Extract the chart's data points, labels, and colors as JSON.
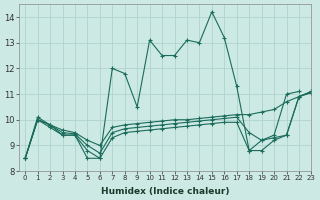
{
  "xlabel": "Humidex (Indice chaleur)",
  "xlim": [
    -0.5,
    23
  ],
  "ylim": [
    8,
    14.5
  ],
  "yticks": [
    8,
    9,
    10,
    11,
    12,
    13,
    14
  ],
  "xticks": [
    0,
    1,
    2,
    3,
    4,
    5,
    6,
    7,
    8,
    9,
    10,
    11,
    12,
    13,
    14,
    15,
    16,
    17,
    18,
    19,
    20,
    21,
    22,
    23
  ],
  "background_color": "#cce9e4",
  "grid_color": "#aacfc9",
  "line_color": "#1a6b5a",
  "main_x": [
    0,
    1,
    2,
    3,
    4,
    5,
    6,
    7,
    8,
    9,
    10,
    11,
    12,
    13,
    14,
    15,
    16,
    17,
    18,
    19,
    20,
    21,
    22
  ],
  "main_y": [
    8.5,
    10.1,
    9.8,
    9.4,
    9.4,
    8.5,
    8.5,
    12.0,
    11.8,
    10.5,
    13.1,
    12.5,
    12.5,
    13.1,
    13.0,
    14.2,
    13.2,
    11.3,
    8.8,
    9.2,
    9.4,
    11.0,
    11.1
  ],
  "line2_x": [
    0,
    1,
    2,
    3,
    4,
    5,
    6,
    7,
    8,
    9,
    10,
    11,
    12,
    13,
    14,
    15,
    16,
    17,
    18,
    19,
    20,
    21,
    22,
    23
  ],
  "line2_y": [
    8.5,
    10.0,
    9.8,
    9.6,
    9.5,
    9.2,
    9.0,
    9.7,
    9.8,
    9.85,
    9.9,
    9.95,
    10.0,
    10.0,
    10.05,
    10.1,
    10.15,
    10.2,
    10.2,
    10.3,
    10.4,
    10.7,
    10.9,
    11.1
  ],
  "line3_x": [
    0,
    1,
    2,
    3,
    4,
    5,
    6,
    7,
    8,
    9,
    10,
    11,
    12,
    13,
    14,
    15,
    16,
    17,
    18,
    19,
    20,
    21,
    22,
    23
  ],
  "line3_y": [
    8.5,
    10.0,
    9.7,
    9.4,
    9.4,
    8.8,
    8.5,
    9.3,
    9.5,
    9.55,
    9.6,
    9.65,
    9.7,
    9.75,
    9.8,
    9.85,
    9.9,
    9.9,
    8.8,
    8.8,
    9.2,
    9.4,
    10.9,
    11.1
  ],
  "line4_x": [
    0,
    1,
    2,
    3,
    4,
    5,
    6,
    7,
    8,
    9,
    10,
    11,
    12,
    13,
    14,
    15,
    16,
    17,
    18,
    19,
    20,
    21,
    22,
    23
  ],
  "line4_y": [
    8.5,
    10.0,
    9.8,
    9.5,
    9.45,
    9.0,
    8.7,
    9.5,
    9.65,
    9.7,
    9.75,
    9.8,
    9.85,
    9.9,
    9.95,
    10.0,
    10.05,
    10.1,
    9.5,
    9.2,
    9.3,
    9.4,
    10.9,
    11.05
  ]
}
